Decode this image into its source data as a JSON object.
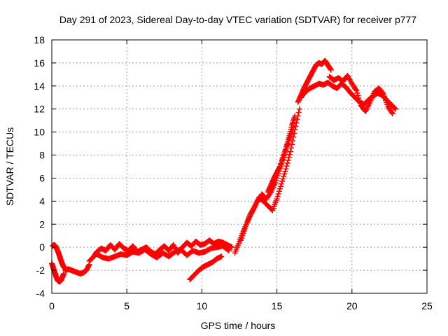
{
  "chart_data": {
    "type": "scatter",
    "title": "Day 291 of 2023, Sidereal Day-to-day VTEC variation (SDTVAR) for receiver p777",
    "xlabel": "GPS time / hours",
    "ylabel": "SDTVAR / TECUs",
    "xlim": [
      0,
      25
    ],
    "ylim": [
      -4,
      18
    ],
    "xticks": [
      "0",
      "5",
      "10",
      "15",
      "20",
      "25"
    ],
    "yticks": [
      "-4",
      "-2",
      "0",
      "2",
      "4",
      "6",
      "8",
      "10",
      "12",
      "14",
      "16",
      "18"
    ],
    "grid": true,
    "marker": "+",
    "series": [
      {
        "name": "SDTVAR",
        "color": "#ff0000",
        "segments": [
          {
            "x": [
              0.0,
              0.1,
              0.2,
              0.3,
              0.4,
              0.5,
              0.6,
              0.7,
              0.8
            ],
            "y": [
              -1.4,
              -1.8,
              -2.2,
              -2.6,
              -2.9,
              -3.0,
              -2.9,
              -2.6,
              -2.3
            ]
          },
          {
            "x": [
              0.05,
              0.15,
              0.25,
              0.35,
              0.45,
              0.55,
              0.65,
              0.75,
              0.85,
              0.95
            ],
            "y": [
              0.1,
              0.2,
              0.1,
              -0.2,
              -0.5,
              -0.9,
              -1.3,
              -1.6,
              -1.8,
              -1.9
            ]
          },
          {
            "x": [
              0.9,
              1.1,
              1.3,
              1.5,
              1.7,
              1.9,
              2.1,
              2.3,
              2.5
            ],
            "y": [
              -2.0,
              -1.9,
              -2.0,
              -2.1,
              -2.2,
              -2.3,
              -2.2,
              -2.0,
              -1.5
            ]
          },
          {
            "x": [
              2.5,
              2.8,
              3.0,
              3.3,
              3.6,
              3.9,
              4.2,
              4.5,
              4.8,
              5.1,
              5.4,
              5.7,
              6.0,
              6.3,
              6.6,
              6.9,
              7.2,
              7.5,
              7.8,
              8.1,
              8.4,
              8.7,
              9.0,
              9.3,
              9.6,
              9.9,
              10.2,
              10.5,
              10.8,
              11.1,
              11.4,
              11.7,
              12.0
            ],
            "y": [
              -1.2,
              -0.8,
              -0.4,
              -0.1,
              -0.3,
              0.2,
              -0.2,
              0.3,
              -0.1,
              -0.3,
              0.1,
              -0.4,
              -0.2,
              0.0,
              -0.4,
              -0.6,
              -0.2,
              0.1,
              -0.3,
              0.2,
              -0.5,
              0.0,
              0.4,
              0.1,
              0.5,
              0.2,
              0.3,
              0.6,
              0.3,
              0.5,
              0.4,
              0.2,
              0.0
            ]
          },
          {
            "x": [
              3.0,
              3.4,
              3.8,
              4.2,
              4.6,
              5.0,
              5.4,
              5.8,
              6.2,
              6.6,
              7.0,
              7.4,
              7.8,
              8.2,
              8.6,
              9.0,
              9.4,
              9.8,
              10.2,
              10.6,
              11.0,
              11.4,
              11.8
            ],
            "y": [
              -0.6,
              -0.9,
              -1.0,
              -0.8,
              -0.6,
              -0.7,
              -0.4,
              -0.5,
              -0.2,
              -0.6,
              -0.9,
              -0.5,
              -0.8,
              -0.4,
              -0.2,
              -0.7,
              -0.3,
              -0.5,
              -0.4,
              -0.1,
              0.0,
              0.1,
              -0.3
            ]
          },
          {
            "x": [
              9.2,
              9.5,
              9.8,
              10.1,
              10.4,
              10.7,
              11.0,
              11.3
            ],
            "y": [
              -2.8,
              -2.4,
              -2.0,
              -1.7,
              -1.5,
              -1.3,
              -1.0,
              -0.8
            ]
          },
          {
            "x": [
              12.2,
              12.5,
              12.8,
              13.1,
              13.4,
              13.7,
              14.0,
              14.3,
              14.6,
              14.9,
              15.2,
              15.5,
              15.8,
              16.1
            ],
            "y": [
              -0.5,
              0.5,
              1.5,
              2.4,
              3.2,
              4.0,
              4.6,
              4.2,
              4.8,
              5.6,
              6.8,
              8.0,
              9.2,
              10.4
            ]
          },
          {
            "x": [
              12.6,
              12.9,
              13.2,
              13.5,
              13.8,
              14.1,
              14.4,
              14.7,
              15.0,
              15.3,
              15.6,
              15.9,
              16.2,
              16.5
            ],
            "y": [
              0.6,
              1.8,
              2.8,
              3.5,
              4.3,
              4.0,
              3.6,
              3.2,
              4.2,
              5.5,
              6.8,
              8.3,
              10.2,
              12.0
            ]
          },
          {
            "x": [
              14.4,
              14.6,
              14.8,
              15.0,
              15.2,
              15.4,
              15.6,
              15.8,
              16.0,
              16.2
            ],
            "y": [
              4.8,
              5.4,
              6.0,
              6.5,
              7.0,
              7.8,
              8.6,
              9.5,
              10.6,
              11.4
            ]
          },
          {
            "x": [
              16.4,
              16.6,
              16.8,
              17.0,
              17.2,
              17.4,
              17.6,
              17.8,
              18.0,
              18.2,
              18.4,
              18.6
            ],
            "y": [
              12.6,
              13.2,
              13.8,
              14.3,
              14.8,
              15.3,
              15.8,
              16.0,
              15.9,
              16.2,
              15.8,
              15.4
            ]
          },
          {
            "x": [
              16.6,
              16.9,
              17.2,
              17.5,
              17.8,
              18.1,
              18.4,
              18.7,
              19.0,
              19.3,
              19.6,
              19.9,
              20.2,
              20.5,
              20.8,
              21.1,
              21.4,
              21.7,
              22.0,
              22.3,
              22.6,
              22.9
            ],
            "y": [
              13.0,
              13.5,
              13.8,
              14.0,
              14.2,
              14.1,
              14.3,
              14.0,
              13.8,
              14.2,
              13.9,
              13.4,
              13.0,
              12.6,
              12.4,
              12.8,
              13.1,
              13.4,
              13.2,
              12.8,
              12.4,
              12.0
            ]
          },
          {
            "x": [
              18.5,
              18.8,
              19.1,
              19.4,
              19.7,
              20.0,
              20.3,
              20.6,
              20.9,
              21.2,
              21.5,
              21.8,
              22.1,
              22.4,
              22.7
            ],
            "y": [
              14.8,
              14.5,
              14.7,
              14.4,
              14.9,
              14.2,
              13.6,
              12.3,
              11.8,
              12.6,
              13.5,
              13.8,
              13.3,
              12.2,
              11.6
            ]
          }
        ]
      }
    ]
  }
}
